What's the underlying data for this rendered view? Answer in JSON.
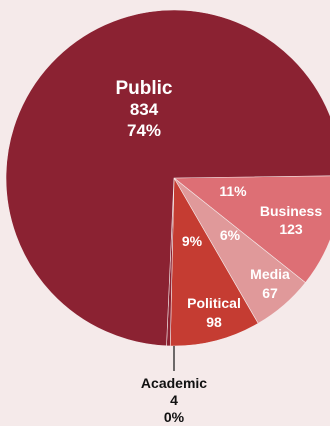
{
  "chart_data": {
    "type": "pie",
    "slices": [
      {
        "name": "Public",
        "value": 834,
        "percent": "74%",
        "color": "#8b2232"
      },
      {
        "name": "Business",
        "value": 123,
        "percent": "11%",
        "color": "#dd6f75"
      },
      {
        "name": "Media",
        "value": 67,
        "percent": "6%",
        "color": "#e0999a"
      },
      {
        "name": "Political",
        "value": 98,
        "percent": "9%",
        "color": "#c53c32"
      },
      {
        "name": "Academic",
        "value": 4,
        "percent": "0%",
        "color": "#8b2232"
      }
    ]
  }
}
